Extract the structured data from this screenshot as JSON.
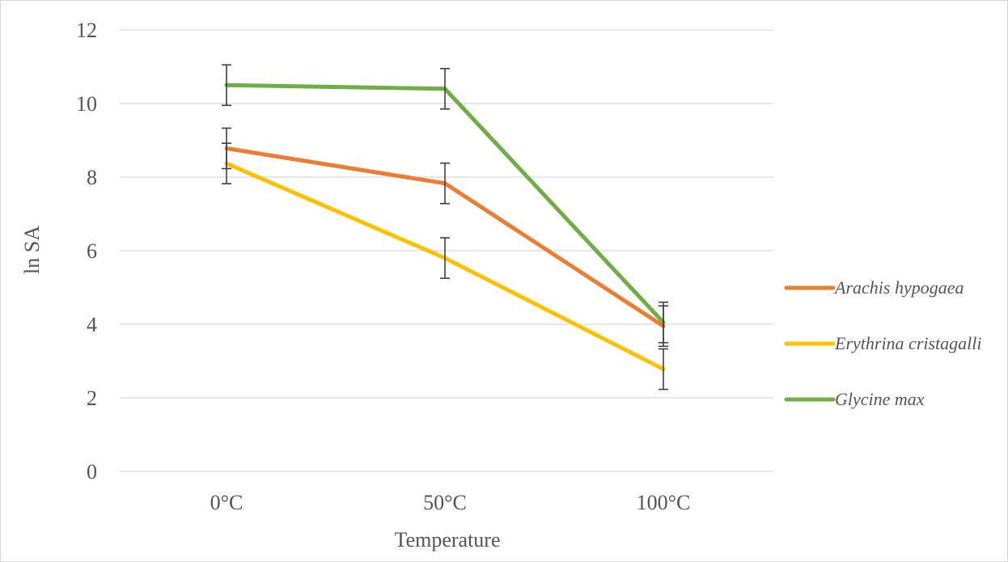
{
  "chart_data": {
    "type": "line",
    "title": "",
    "xlabel": "Temperature",
    "ylabel": "ln SA",
    "categories": [
      "0°C",
      "50°C",
      "100°C"
    ],
    "ylim": [
      0,
      12
    ],
    "yticks": [
      0,
      2,
      4,
      6,
      8,
      10,
      12
    ],
    "grid": true,
    "legend_position": "right",
    "series": [
      {
        "name": "Arachis hypogaea",
        "color": "#ED7D31",
        "values": [
          8.78,
          7.83,
          3.95
        ],
        "error": [
          0.55,
          0.55,
          0.55
        ]
      },
      {
        "name": "Erythrina cristagalli",
        "color": "#FFC000",
        "values": [
          8.37,
          5.8,
          2.78
        ],
        "error": [
          0.55,
          0.55,
          0.55
        ]
      },
      {
        "name": "Glycine max",
        "color": "#70AD47",
        "values": [
          10.5,
          10.4,
          4.05
        ],
        "error": [
          0.55,
          0.55,
          0.55
        ]
      }
    ]
  }
}
